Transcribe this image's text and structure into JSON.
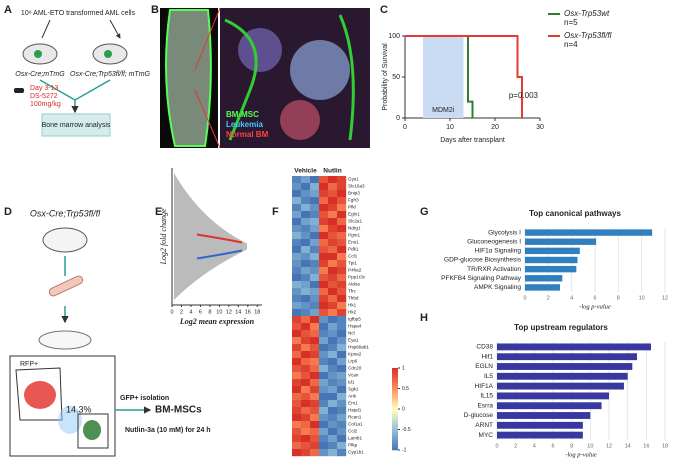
{
  "panels": {
    "labels": [
      "A",
      "B",
      "C",
      "D",
      "E",
      "F",
      "G",
      "H"
    ]
  },
  "panel_a": {
    "cells": "10⁶ AML-ETO transformed AML cells",
    "group1": "Osx-Cre;mTmG",
    "group2": "Osx-Cre;Trp53fl/fl; mTmG",
    "treatment": [
      "Day 3-13",
      "DS-5272",
      "100mg/kg"
    ],
    "outcome": "Bone marrow analysis"
  },
  "panel_b": {
    "legend": [
      "BM-MSC",
      "Leukemia",
      "Normal BM"
    ]
  },
  "panel_d": {
    "mouse": "Osx-Cre;Trp53fl/fl",
    "gate": "RFP+",
    "percent": "14.3%",
    "step": "GFP+ isolation",
    "result": "BM-MSCs",
    "treatment": "Nutlin-3a (10 mM) for 24 h"
  },
  "chart_data": [
    {
      "type": "line",
      "xlabel": "Days after transplant",
      "ylabel": "Probability of Survival",
      "xlim": [
        0,
        30
      ],
      "xticks": [
        0,
        10,
        20,
        30
      ],
      "ylim": [
        0,
        100
      ],
      "yticks": [
        0,
        50,
        100
      ],
      "shade": {
        "label": "MDM2i",
        "x": [
          4,
          13
        ],
        "color": "#c9dcf3"
      },
      "annotation": "p=0.003",
      "series": [
        {
          "name": "Osx-Trp53wt",
          "n": "n=5",
          "color": "#2e7d32",
          "x": [
            0,
            14,
            14,
            15,
            15
          ],
          "values": [
            100,
            100,
            20,
            20,
            0
          ]
        },
        {
          "name": "Osx-Trp53fl/fl",
          "n": "n=4",
          "color": "#e53935",
          "x": [
            0,
            25,
            25,
            26,
            26
          ],
          "values": [
            100,
            100,
            50,
            50,
            0
          ]
        }
      ]
    },
    {
      "type": "ma-plot",
      "xlabel": "Log2 mean expression",
      "ylabel": "Log2 fold change",
      "xlim": [
        0,
        19
      ],
      "xticks": [
        0,
        2,
        4,
        6,
        8,
        10,
        12,
        14,
        16,
        18
      ]
    },
    {
      "type": "heatmap",
      "columns": [
        "Vehicle",
        "Nutlin"
      ],
      "clim": [
        -1,
        1
      ],
      "cticks": [
        1,
        0.5,
        0,
        -0.5,
        -1
      ],
      "rows": [
        "Gys1",
        "Slc16a3",
        "Bnip3",
        "Fgfr3",
        "Pfkl",
        "Egln1",
        "Slc2a1",
        "Ndrg1",
        "Pgm1",
        "Eno1",
        "Pdk1",
        "Ccl1",
        "Tpi1",
        "P4ha2",
        "Ppp1r3c",
        "Aldoa",
        "Tfrc",
        "Thbd",
        "Hk1",
        "Hk2",
        "Igfbp5",
        "Hspa4",
        "Ncl",
        "Eya1",
        "Hsp90ab1",
        "Kpna2",
        "Lrp6",
        "Cdc20",
        "Vcan",
        "Id1",
        "Sgk1",
        "Ank",
        "Ern1",
        "Hspd1",
        "Rcan1",
        "Col1a1",
        "Ccl2",
        "Lamb1",
        "Pfkp",
        "Cyp1b1"
      ],
      "values": [
        [
          -0.9,
          -0.7,
          -1,
          0.8,
          1,
          0.9
        ],
        [
          -0.8,
          -1,
          -0.6,
          1,
          0.7,
          0.9
        ],
        [
          -1,
          -0.8,
          -0.7,
          0.9,
          0.8,
          1
        ],
        [
          -0.6,
          -0.9,
          -1,
          0.7,
          1,
          0.8
        ],
        [
          -0.9,
          -0.6,
          -0.8,
          1,
          0.9,
          0.6
        ],
        [
          -0.7,
          -1,
          -0.9,
          0.8,
          0.6,
          1
        ],
        [
          -1,
          -0.7,
          -0.6,
          0.9,
          1,
          0.7
        ],
        [
          -0.8,
          -0.9,
          -0.7,
          0.6,
          0.9,
          1
        ],
        [
          -0.6,
          -0.8,
          -1,
          1,
          0.8,
          0.7
        ],
        [
          -0.9,
          -1,
          -0.7,
          0.7,
          0.9,
          0.8
        ],
        [
          -1,
          -0.6,
          -0.9,
          0.8,
          0.7,
          1
        ],
        [
          -0.7,
          -0.8,
          -0.6,
          1,
          1,
          0.6
        ],
        [
          -0.8,
          -1,
          -0.9,
          0.9,
          0.6,
          0.8
        ],
        [
          -0.9,
          -0.7,
          -0.8,
          0.6,
          1,
          0.9
        ],
        [
          -1,
          -0.9,
          -0.6,
          0.8,
          0.9,
          0.7
        ],
        [
          -0.6,
          -0.7,
          -1,
          1,
          0.8,
          0.9
        ],
        [
          -0.8,
          -0.6,
          -0.7,
          0.7,
          1,
          0.8
        ],
        [
          -0.9,
          -1,
          -0.8,
          0.9,
          0.7,
          1
        ],
        [
          -0.7,
          -0.8,
          -0.9,
          1,
          0.9,
          0.6
        ],
        [
          -1,
          -0.9,
          -0.7,
          0.8,
          0.6,
          0.9
        ],
        [
          0.9,
          0.7,
          1,
          -0.8,
          -1,
          -0.9
        ],
        [
          0.8,
          1,
          0.6,
          -1,
          -0.7,
          -0.9
        ],
        [
          1,
          0.8,
          0.7,
          -0.9,
          -0.8,
          -1
        ],
        [
          0.6,
          0.9,
          1,
          -0.7,
          -1,
          -0.8
        ],
        [
          0.9,
          0.6,
          0.8,
          -1,
          -0.9,
          -0.6
        ],
        [
          0.7,
          1,
          0.9,
          -0.8,
          -0.6,
          -1
        ],
        [
          1,
          0.7,
          0.6,
          -0.9,
          -1,
          -0.7
        ],
        [
          0.8,
          0.9,
          0.7,
          -0.6,
          -0.9,
          -1
        ],
        [
          0.6,
          0.8,
          1,
          -1,
          -0.8,
          -0.7
        ],
        [
          0.9,
          1,
          0.7,
          -0.7,
          -0.9,
          -0.8
        ],
        [
          1,
          0.6,
          0.9,
          -0.8,
          -0.7,
          -1
        ],
        [
          0.7,
          0.8,
          0.6,
          -1,
          -1,
          -0.6
        ],
        [
          0.8,
          1,
          0.9,
          -0.9,
          -0.6,
          -0.8
        ],
        [
          0.9,
          0.7,
          0.8,
          -0.6,
          -1,
          -0.9
        ],
        [
          1,
          0.9,
          0.6,
          -0.8,
          -0.9,
          -0.7
        ],
        [
          0.6,
          0.7,
          1,
          -1,
          -0.8,
          -0.9
        ],
        [
          0.8,
          0.6,
          0.7,
          -0.7,
          -1,
          -0.8
        ],
        [
          0.9,
          1,
          0.8,
          -0.9,
          -0.7,
          -1
        ],
        [
          0.7,
          0.8,
          0.9,
          -1,
          -0.9,
          -0.6
        ],
        [
          1,
          0.9,
          0.7,
          -0.8,
          -0.6,
          -0.9
        ]
      ]
    },
    {
      "type": "hbar",
      "title": "Top canonical pathways",
      "xlabel": "-log p-value",
      "color": "#2f7fc1",
      "grid": true,
      "categories": [
        "Glycolysis I",
        "Gluconeogenesis I",
        "HIF1α Signaling",
        "GDP-glucose Biosynthesis",
        "TR/RXR Activation",
        "PFKFB4 Signaling Pathway",
        "AMPK Signaling"
      ],
      "values": [
        10.9,
        6.1,
        4.7,
        4.5,
        4.4,
        3.2,
        3.0
      ],
      "xlim": [
        0,
        12
      ],
      "xticks": [
        0,
        2,
        4,
        6,
        8,
        10,
        12
      ]
    },
    {
      "type": "hbar",
      "title": "Top upstream regulators",
      "xlabel": "-log p-value",
      "color": "#3838a0",
      "grid": true,
      "categories": [
        "CD38",
        "Hif1",
        "EGLN",
        "IL5",
        "HIF1A",
        "IL15",
        "Esrra",
        "D-glucose",
        "ARNT",
        "MYC"
      ],
      "values": [
        16.5,
        15.0,
        14.5,
        14.0,
        13.6,
        12.0,
        11.2,
        10.0,
        9.2,
        9.2
      ],
      "xlim": [
        0,
        18
      ],
      "xticks": [
        0,
        2,
        4,
        6,
        8,
        10,
        12,
        14,
        16,
        18
      ]
    }
  ]
}
